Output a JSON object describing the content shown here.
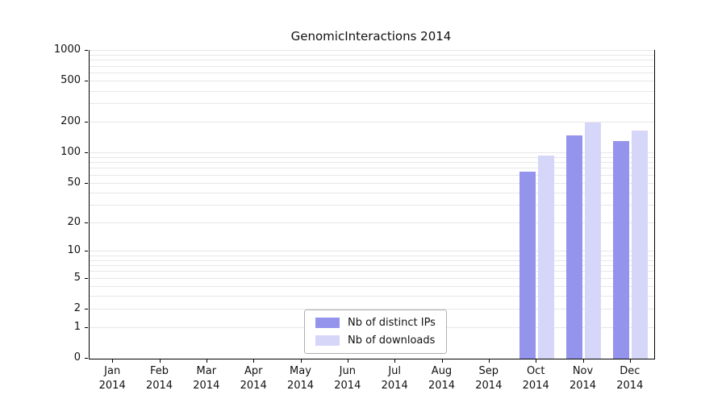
{
  "title": "GenomicInteractions 2014",
  "chart_data": {
    "type": "bar",
    "title": "GenomicInteractions 2014",
    "scale": "log10(value+1)",
    "year": "2014",
    "categories": [
      "Jan",
      "Feb",
      "Mar",
      "Apr",
      "May",
      "Jun",
      "Jul",
      "Aug",
      "Sep",
      "Oct",
      "Nov",
      "Dec"
    ],
    "y_ticks": [
      0,
      1,
      2,
      5,
      10,
      20,
      50,
      100,
      200,
      500,
      1000
    ],
    "ylim": [
      0,
      1000
    ],
    "grid": "horizontal-log-minor",
    "legend_position": "bottom-center-inside",
    "series": [
      {
        "key": "distinct-ips",
        "name": "Nb of distinct IPs",
        "color": "#9494ec",
        "values": [
          0,
          0,
          0,
          0,
          0,
          0,
          0,
          0,
          0,
          65,
          150,
          130
        ]
      },
      {
        "key": "downloads",
        "name": "Nb of downloads",
        "color": "#d6d6f9",
        "values": [
          0,
          0,
          0,
          0,
          0,
          0,
          0,
          0,
          0,
          95,
          200,
          165
        ]
      }
    ]
  }
}
